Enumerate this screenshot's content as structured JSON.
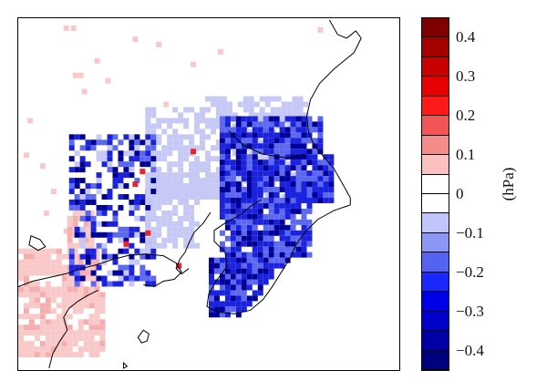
{
  "colorbar": {
    "unit": "(hPa)",
    "tick_labels": [
      "0.4",
      "0.3",
      "0.2",
      "0.1",
      "0",
      "−0.1",
      "−0.2",
      "−0.3",
      "−0.4"
    ],
    "colors": [
      "#7f0000",
      "#a50000",
      "#c80000",
      "#e60000",
      "#ff1a1a",
      "#f25555",
      "#f58c8c",
      "#fbc0c0",
      "#ffffff",
      "#ffffff",
      "#c0c6fb",
      "#8c96f5",
      "#5563f2",
      "#1a28ff",
      "#0000e6",
      "#0000c8",
      "#0000a5",
      "#00007f"
    ]
  },
  "legend_colors": {
    "land_positive_light": "#f9c8c8",
    "land_negative_light": "#c6c9f5",
    "negative_mid": "#5c68ee",
    "negative_strong": "#1a22dd",
    "negative_deep": "#000099",
    "positive_strong": "#ee2222",
    "coastline": "#000000"
  }
}
